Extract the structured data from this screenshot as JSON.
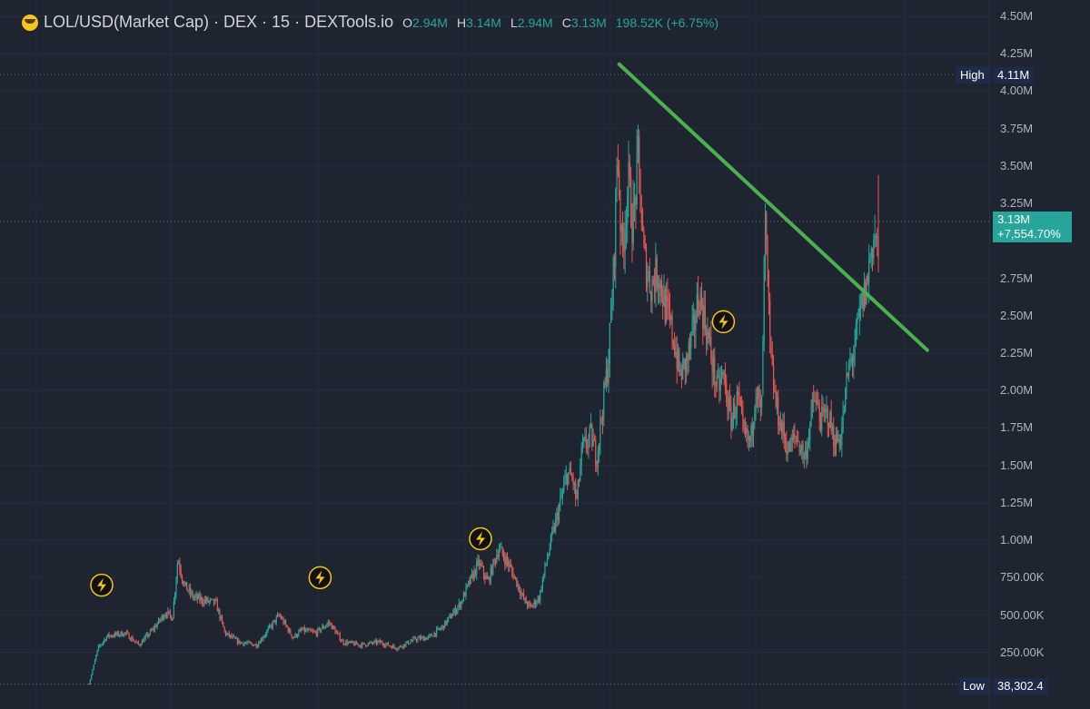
{
  "header": {
    "title": "LOL/USD(Market Cap) · DEX · 15 · DEXTools.io",
    "open_label": "O",
    "open": "2.94M",
    "high_label": "H",
    "high": "3.14M",
    "low_label": "L",
    "low": "2.94M",
    "close_label": "C",
    "close": "3.13M",
    "change": "198.52K (+6.75%)"
  },
  "price_axis": {
    "ticks": [
      "4.50M",
      "4.25M",
      "4.00M",
      "3.75M",
      "3.50M",
      "3.25M",
      "2.75M",
      "2.50M",
      "2.25M",
      "2.00M",
      "1.75M",
      "1.50M",
      "1.25M",
      "1.00M",
      "750.00K",
      "500.00K",
      "250.00K"
    ],
    "high_tag": "High",
    "high_value": "4.11M",
    "current_value": "3.13M",
    "current_change": "+7,554.70%",
    "low_tag": "Low",
    "low_value": "38,302.4"
  },
  "colors": {
    "background": "#1f2431",
    "up": "#26a69a",
    "down": "#ef5350",
    "trendline": "#4caf50",
    "current_badge": "#26a69a",
    "tag_bg": "#1e2a4a"
  },
  "icons": [
    "lightning-marker-icon",
    "lightning-marker-icon",
    "lightning-marker-icon",
    "lightning-marker-icon"
  ],
  "chart_data": {
    "type": "candlestick",
    "ylim": [
      0,
      4500000
    ],
    "yticks": [
      250000,
      500000,
      750000,
      1000000,
      1250000,
      1500000,
      1750000,
      2000000,
      2250000,
      2500000,
      2750000,
      3250000,
      3500000,
      3750000,
      4000000,
      4250000,
      4500000
    ],
    "keypoints": [
      [
        0,
        0.04
      ],
      [
        10,
        0.28
      ],
      [
        20,
        0.36
      ],
      [
        40,
        0.38
      ],
      [
        55,
        0.3
      ],
      [
        70,
        0.4
      ],
      [
        85,
        0.52
      ],
      [
        92,
        0.48
      ],
      [
        98,
        0.88
      ],
      [
        105,
        0.7
      ],
      [
        115,
        0.62
      ],
      [
        125,
        0.6
      ],
      [
        140,
        0.58
      ],
      [
        150,
        0.38
      ],
      [
        165,
        0.32
      ],
      [
        185,
        0.3
      ],
      [
        200,
        0.42
      ],
      [
        210,
        0.5
      ],
      [
        225,
        0.35
      ],
      [
        235,
        0.4
      ],
      [
        250,
        0.38
      ],
      [
        265,
        0.45
      ],
      [
        280,
        0.32
      ],
      [
        300,
        0.3
      ],
      [
        320,
        0.32
      ],
      [
        340,
        0.28
      ],
      [
        360,
        0.34
      ],
      [
        375,
        0.35
      ],
      [
        390,
        0.42
      ],
      [
        400,
        0.5
      ],
      [
        410,
        0.58
      ],
      [
        420,
        0.72
      ],
      [
        430,
        0.85
      ],
      [
        440,
        0.72
      ],
      [
        452,
        0.95
      ],
      [
        462,
        0.85
      ],
      [
        472,
        0.72
      ],
      [
        480,
        0.6
      ],
      [
        487,
        0.55
      ],
      [
        497,
        0.62
      ],
      [
        502,
        0.78
      ],
      [
        510,
        1.0
      ],
      [
        518,
        1.2
      ],
      [
        528,
        1.45
      ],
      [
        534,
        1.4
      ],
      [
        538,
        1.25
      ],
      [
        544,
        1.6
      ],
      [
        554,
        1.7
      ],
      [
        560,
        1.55
      ],
      [
        566,
        1.85
      ],
      [
        573,
        2.2
      ],
      [
        578,
        2.7
      ],
      [
        580,
        3.0
      ],
      [
        583,
        3.65
      ],
      [
        588,
        2.9
      ],
      [
        595,
        3.4
      ],
      [
        600,
        3.1
      ],
      [
        606,
        3.55
      ],
      [
        612,
        2.9
      ],
      [
        620,
        2.7
      ],
      [
        628,
        2.8
      ],
      [
        636,
        2.55
      ],
      [
        645,
        2.35
      ],
      [
        652,
        2.1
      ],
      [
        660,
        2.2
      ],
      [
        667,
        2.4
      ],
      [
        673,
        2.65
      ],
      [
        680,
        2.45
      ],
      [
        686,
        2.25
      ],
      [
        693,
        2.0
      ],
      [
        700,
        2.1
      ],
      [
        708,
        1.8
      ],
      [
        716,
        1.95
      ],
      [
        722,
        1.7
      ],
      [
        730,
        1.65
      ],
      [
        736,
        2.05
      ],
      [
        742,
        1.8
      ],
      [
        746,
        3.15
      ],
      [
        752,
        2.2
      ],
      [
        758,
        1.9
      ],
      [
        764,
        1.75
      ],
      [
        772,
        1.6
      ],
      [
        780,
        1.7
      ],
      [
        790,
        1.55
      ],
      [
        800,
        1.95
      ],
      [
        808,
        1.8
      ],
      [
        815,
        1.85
      ],
      [
        823,
        1.65
      ],
      [
        830,
        1.7
      ],
      [
        837,
        2.1
      ],
      [
        845,
        2.3
      ],
      [
        852,
        2.55
      ],
      [
        858,
        2.7
      ],
      [
        863,
        2.95
      ],
      [
        867,
        3.05
      ],
      [
        871,
        2.9
      ]
    ],
    "annotations": {
      "trendline": {
        "from": [
          585,
          4180000
        ],
        "to": [
          925,
          2270000
        ]
      },
      "lightning_markers": [
        [
          14,
          700000
        ],
        [
          255,
          750000
        ],
        [
          432,
          1010000
        ],
        [
          700,
          2460000
        ]
      ]
    }
  }
}
